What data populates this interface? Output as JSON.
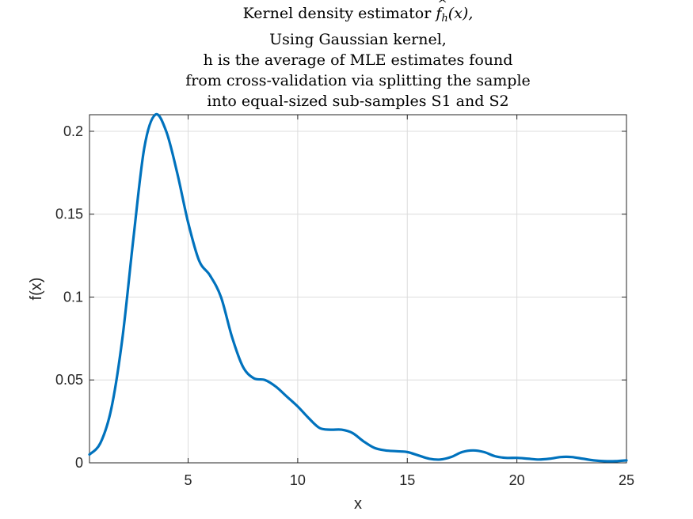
{
  "chart_data": {
    "type": "line",
    "title": {
      "line1_prefix": "Kernel density estimator",
      "line1_symbol": "f",
      "line1_subscript": "h",
      "line1_arg": "(x),",
      "line2": "Using Gaussian kernel,",
      "line3": "h is the average of MLE estimates found",
      "line4": "from cross-validation via splitting the sample",
      "line5": "into equal-sized sub-samples S1 and S2"
    },
    "xlabel": "x",
    "ylabel": "f(x)",
    "xlim": [
      0.5,
      25
    ],
    "ylim": [
      0,
      0.21
    ],
    "xticks": [
      5,
      10,
      15,
      20,
      25
    ],
    "xtick_labels": [
      "5",
      "10",
      "15",
      "20",
      "25"
    ],
    "yticks": [
      0,
      0.05,
      0.1,
      0.15,
      0.2
    ],
    "ytick_labels": [
      "0",
      "0.05",
      "0.1",
      "0.15",
      "0.2"
    ],
    "grid": true,
    "series": [
      {
        "color": "#0072BD",
        "x": [
          0.5,
          1.0,
          1.5,
          2.0,
          2.5,
          3.0,
          3.5,
          4.0,
          4.5,
          5.0,
          5.5,
          6.0,
          6.5,
          7.0,
          7.5,
          8.0,
          8.5,
          9.0,
          9.5,
          10.0,
          10.5,
          11.0,
          11.5,
          12.0,
          12.5,
          13.0,
          13.5,
          14.0,
          14.5,
          15.0,
          15.5,
          16.0,
          16.5,
          17.0,
          17.5,
          18.0,
          18.5,
          19.0,
          19.5,
          20.0,
          20.5,
          21.0,
          21.5,
          22.0,
          22.5,
          23.0,
          23.5,
          24.0,
          24.5,
          25.0
        ],
        "y": [
          0.005,
          0.012,
          0.033,
          0.075,
          0.135,
          0.19,
          0.21,
          0.2,
          0.175,
          0.145,
          0.122,
          0.113,
          0.1,
          0.076,
          0.058,
          0.051,
          0.05,
          0.046,
          0.04,
          0.034,
          0.027,
          0.021,
          0.02,
          0.02,
          0.018,
          0.013,
          0.009,
          0.0075,
          0.007,
          0.0065,
          0.0045,
          0.0025,
          0.002,
          0.0035,
          0.0065,
          0.0075,
          0.0065,
          0.004,
          0.003,
          0.003,
          0.0025,
          0.002,
          0.0025,
          0.0035,
          0.0035,
          0.0025,
          0.0015,
          0.001,
          0.001,
          0.0015
        ]
      }
    ]
  }
}
